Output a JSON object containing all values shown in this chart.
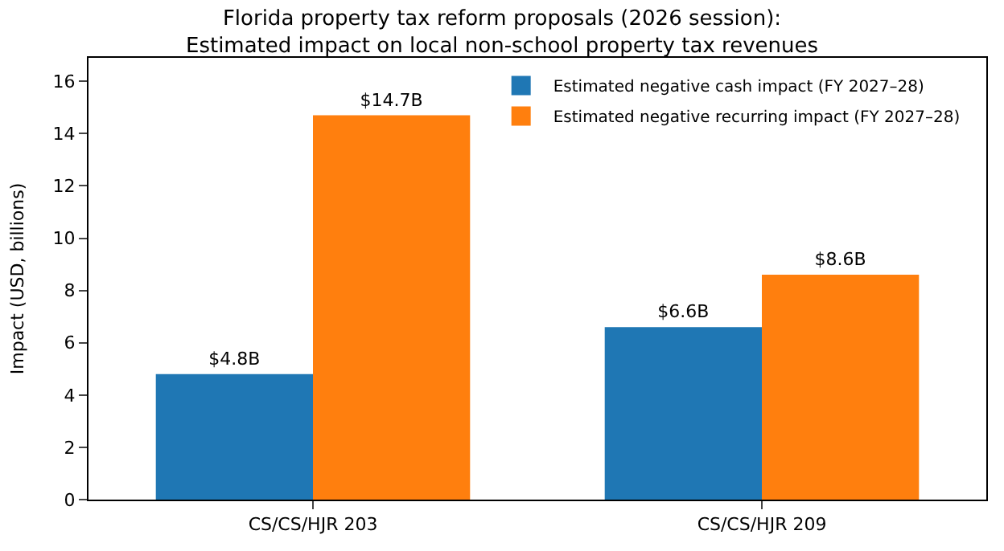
{
  "chart_data": {
    "type": "bar",
    "title": "Florida property tax reform proposals (2026 session):\nEstimated impact on local non-school property tax revenues",
    "ylabel": "Impact (USD, billions)",
    "categories": [
      "CS/CS/HJR 203",
      "CS/CS/HJR 209"
    ],
    "series": [
      {
        "name": "Estimated negative cash impact (FY 2027–28)",
        "color": "#1f77b4",
        "values": [
          4.8,
          6.6
        ],
        "value_labels": [
          "$4.8B",
          "$6.6B"
        ]
      },
      {
        "name": "Estimated negative recurring impact (FY 2027–28)",
        "color": "#ff7f0e",
        "values": [
          14.7,
          8.6
        ],
        "value_labels": [
          "$14.7B",
          "$8.6B"
        ]
      }
    ],
    "ylim": [
      0,
      16.9
    ],
    "yticks": [
      0,
      2,
      4,
      6,
      8,
      10,
      12,
      14,
      16
    ],
    "legend": "top right"
  }
}
